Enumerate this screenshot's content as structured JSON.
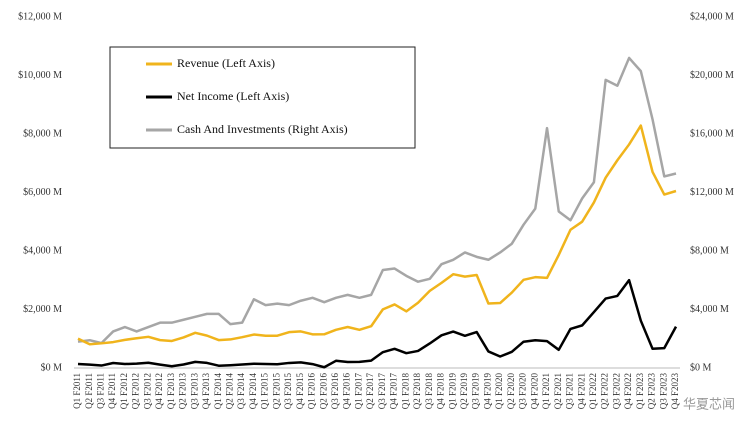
{
  "chart_data": {
    "type": "line",
    "categories": [
      "Q1 F2011",
      "Q2 F2011",
      "Q3 F2011",
      "Q4 F2011",
      "Q1 F2012",
      "Q2 F2012",
      "Q3 F2012",
      "Q4 F2012",
      "Q1 F2013",
      "Q2 F2013",
      "Q3 F2013",
      "Q4 F2013",
      "Q1 F2014",
      "Q2 F2014",
      "Q3 F2014",
      "Q4 F2014",
      "Q1 F2015",
      "Q2 F2015",
      "Q3 F2015",
      "Q4 F2015",
      "Q1 F2016",
      "Q2 F2016",
      "Q3 F2016",
      "Q4 F2016",
      "Q1 F2017",
      "Q2 F2017",
      "Q3 F2017",
      "Q4 F2017",
      "Q1 F2018",
      "Q2 F2018",
      "Q3 F2018",
      "Q4 F2018",
      "Q1 F2019",
      "Q2 F2019",
      "Q3 F2019",
      "Q4 F2019",
      "Q1 F2020",
      "Q2 F2020",
      "Q3 F2020",
      "Q4 F2020",
      "Q1 F2021",
      "Q2 F2021",
      "Q3 F2021",
      "Q4 F2021",
      "Q1 F2022",
      "Q2 F2022",
      "Q3 F2022",
      "Q4 F2022",
      "Q1 F2023",
      "Q2 F2023",
      "Q3 F2023",
      "Q4 F2023"
    ],
    "series": [
      {
        "name": "Revenue (Left Axis)",
        "color": "#f0b41c",
        "values": [
          1002,
          811,
          844,
          886,
          962,
          1017,
          1066,
          953,
          924,
          1044,
          1204,
          1107,
          954,
          977,
          1054,
          1144,
          1103,
          1103,
          1225,
          1251,
          1151,
          1153,
          1305,
          1401,
          1305,
          1428,
          2004,
          2173,
          1937,
          2230,
          2636,
          2911,
          3207,
          3123,
          3181,
          2205,
          2220,
          2579,
          3014,
          3105,
          3080,
          3866,
          4726,
          5003,
          5661,
          6507,
          7103,
          7643,
          8288,
          6704,
          5931,
          6051
        ]
      },
      {
        "name": "Net Income (Left Axis)",
        "color": "#000000",
        "values": [
          138,
          115,
          84,
          172,
          135,
          151,
          178,
          116,
          60,
          119,
          209,
          174,
          78,
          96,
          118,
          147,
          137,
          128,
          173,
          193,
          134,
          26,
          246,
          207,
          208,
          253,
          542,
          655,
          507,
          583,
          838,
          1118,
          1244,
          1101,
          1230,
          567,
          394,
          552,
          899,
          950,
          917,
          622,
          1336,
          1457,
          1912,
          2374,
          2464,
          3003,
          1618,
          656,
          680,
          1414
        ]
      },
      {
        "name": "Cash And Investments (Right Axis)",
        "color": "#a6a6a6",
        "axis": "y2",
        "values": [
          1800,
          1900,
          1700,
          2500,
          2800,
          2500,
          2800,
          3100,
          3100,
          3300,
          3500,
          3700,
          3700,
          3000,
          3100,
          4700,
          4300,
          4400,
          4300,
          4600,
          4800,
          4500,
          4800,
          5000,
          4800,
          5000,
          6700,
          6800,
          6300,
          5900,
          6100,
          7100,
          7400,
          7900,
          7600,
          7400,
          7900,
          8500,
          9800,
          10900,
          16400,
          10700,
          10100,
          11600,
          12700,
          19700,
          19300,
          21200,
          20300,
          17000,
          13100,
          13300
        ]
      }
    ],
    "ylim": [
      0,
      12000
    ],
    "yticks": [
      {
        "value": 0,
        "label": "$0 M"
      },
      {
        "value": 2000,
        "label": "$2,000 M"
      },
      {
        "value": 4000,
        "label": "$4,000 M"
      },
      {
        "value": 6000,
        "label": "$6,000 M"
      },
      {
        "value": 8000,
        "label": "$8,000 M"
      },
      {
        "value": 10000,
        "label": "$10,000 M"
      },
      {
        "value": 12000,
        "label": "$12,000 M"
      }
    ],
    "y2lim": [
      0,
      24000
    ],
    "y2ticks": [
      {
        "value": 0,
        "label": "$0 M"
      },
      {
        "value": 4000,
        "label": "$4,000 M"
      },
      {
        "value": 8000,
        "label": "$8,000 M"
      },
      {
        "value": 12000,
        "label": "$12,000 M"
      },
      {
        "value": 16000,
        "label": "$16,000 M"
      },
      {
        "value": 20000,
        "label": "$20,000 M"
      },
      {
        "value": 24000,
        "label": "$24,000 M"
      }
    ],
    "watermark": "华夏芯闻"
  }
}
